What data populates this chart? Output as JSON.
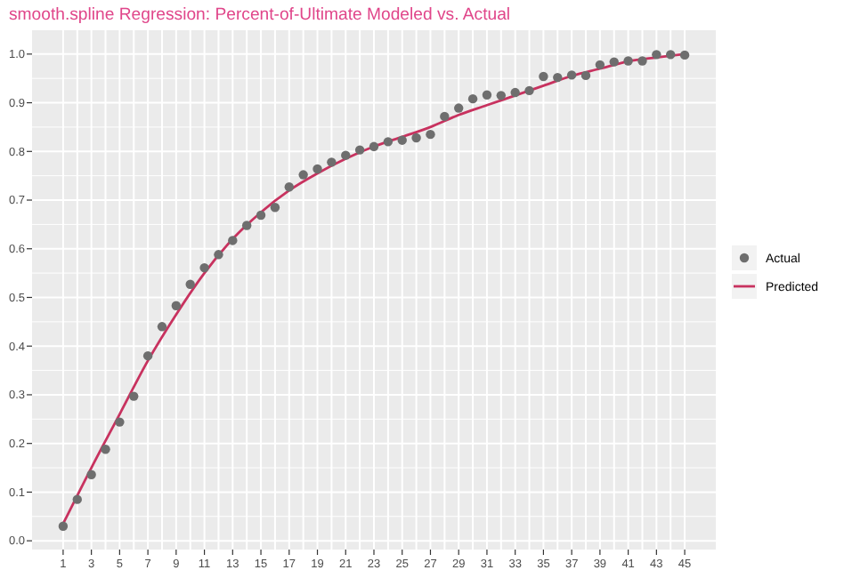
{
  "chart_data": {
    "type": "scatter",
    "title": "smooth.spline Regression: Percent-of-Ultimate Modeled vs. Actual",
    "xlim": [
      -1.2,
      47.2
    ],
    "xticks": [
      1,
      {
        "value": 2,
        "label": null
      },
      3,
      {
        "value": 4,
        "label": null
      },
      5,
      {
        "value": 6,
        "label": null
      },
      7,
      {
        "value": 8,
        "label": null
      },
      9,
      {
        "value": 10,
        "label": null
      },
      11,
      {
        "value": 12,
        "label": null
      },
      13,
      {
        "value": 14,
        "label": null
      },
      15,
      {
        "value": 16,
        "label": null
      },
      17,
      {
        "value": 18,
        "label": null
      },
      19,
      {
        "value": 20,
        "label": null
      },
      21,
      {
        "value": 22,
        "label": null
      },
      23,
      {
        "value": 24,
        "label": null
      },
      25,
      {
        "value": 26,
        "label": null
      },
      27,
      {
        "value": 28,
        "label": null
      },
      29,
      {
        "value": 30,
        "label": null
      },
      31,
      {
        "value": 32,
        "label": null
      },
      33,
      {
        "value": 34,
        "label": null
      },
      35,
      {
        "value": 36,
        "label": null
      },
      37,
      {
        "value": 38,
        "label": null
      },
      39,
      {
        "value": 40,
        "label": null
      },
      41,
      {
        "value": 42,
        "label": null
      },
      43,
      {
        "value": 44,
        "label": null
      },
      45
    ],
    "ylim": [
      -0.018,
      1.049
    ],
    "yticks": [
      {
        "value": 0,
        "label": "0.0"
      },
      0.1,
      0.2,
      0.3,
      0.4,
      0.5,
      0.6,
      0.7,
      0.8,
      0.9,
      {
        "value": 1,
        "label": "1.0"
      }
    ],
    "grid": true,
    "legend": "right",
    "series": [
      {
        "name": "Actual",
        "type": "scatter",
        "marker": "circle",
        "color": "#6e6e6e",
        "x": [
          1,
          2,
          3,
          4,
          5,
          6,
          7,
          8,
          9,
          10,
          11,
          12,
          13,
          14,
          15,
          16,
          17,
          18,
          19,
          20,
          21,
          22,
          23,
          24,
          25,
          26,
          27,
          28,
          29,
          30,
          31,
          32,
          33,
          34,
          35,
          36,
          37,
          38,
          39,
          40,
          41,
          42,
          43,
          44,
          45
        ],
        "values": [
          0.03,
          0.085,
          0.136,
          0.188,
          0.244,
          0.297,
          0.38,
          0.44,
          0.483,
          0.527,
          0.561,
          0.588,
          0.617,
          0.648,
          0.669,
          0.685,
          0.727,
          0.752,
          0.764,
          0.778,
          0.792,
          0.803,
          0.81,
          0.82,
          0.823,
          0.828,
          0.835,
          0.872,
          0.889,
          0.908,
          0.916,
          0.915,
          0.921,
          0.925,
          0.954,
          0.952,
          0.957,
          0.956,
          0.978,
          0.984,
          0.986,
          0.986,
          0.999,
          0.999,
          0.998
        ]
      },
      {
        "name": "Predicted",
        "type": "line",
        "marker": "none",
        "line_style": "solid",
        "color": "#c8325f",
        "x": [
          1,
          3,
          5,
          7,
          9,
          11,
          13,
          15,
          17,
          19,
          21,
          23,
          25,
          27,
          29,
          31,
          33,
          35,
          37,
          39,
          41,
          43,
          45
        ],
        "values": [
          0.035,
          0.15,
          0.26,
          0.37,
          0.465,
          0.55,
          0.62,
          0.675,
          0.72,
          0.755,
          0.785,
          0.81,
          0.83,
          0.85,
          0.875,
          0.895,
          0.915,
          0.935,
          0.955,
          0.97,
          0.985,
          0.993,
          1.0
        ]
      }
    ]
  }
}
